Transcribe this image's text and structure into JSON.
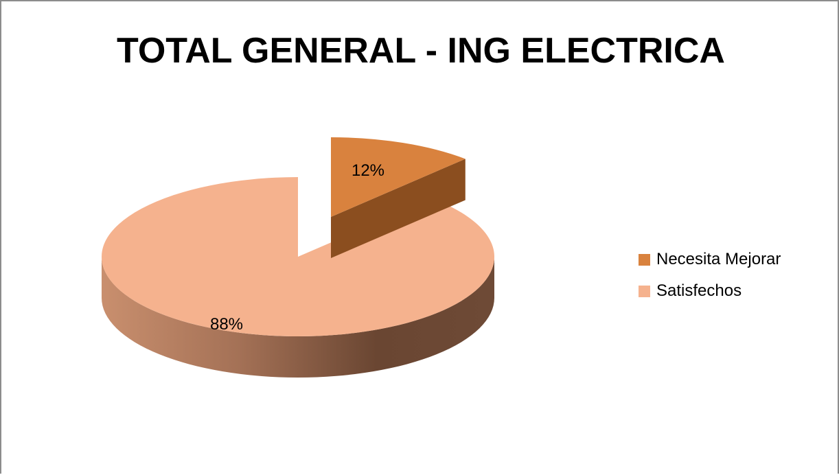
{
  "chart_data": {
    "type": "pie",
    "title": "TOTAL GENERAL - ING ELECTRICA",
    "slices": [
      {
        "name": "Necesita Mejorar",
        "value": 12,
        "label": "12%",
        "color": "#d9823e",
        "side_color": "#8b4e1f"
      },
      {
        "name": "Satisfechos",
        "value": 88,
        "label": "88%",
        "color": "#f5b28e",
        "side_color": "#a6735a"
      }
    ],
    "style": "3d-exploded",
    "legend_position": "right"
  }
}
